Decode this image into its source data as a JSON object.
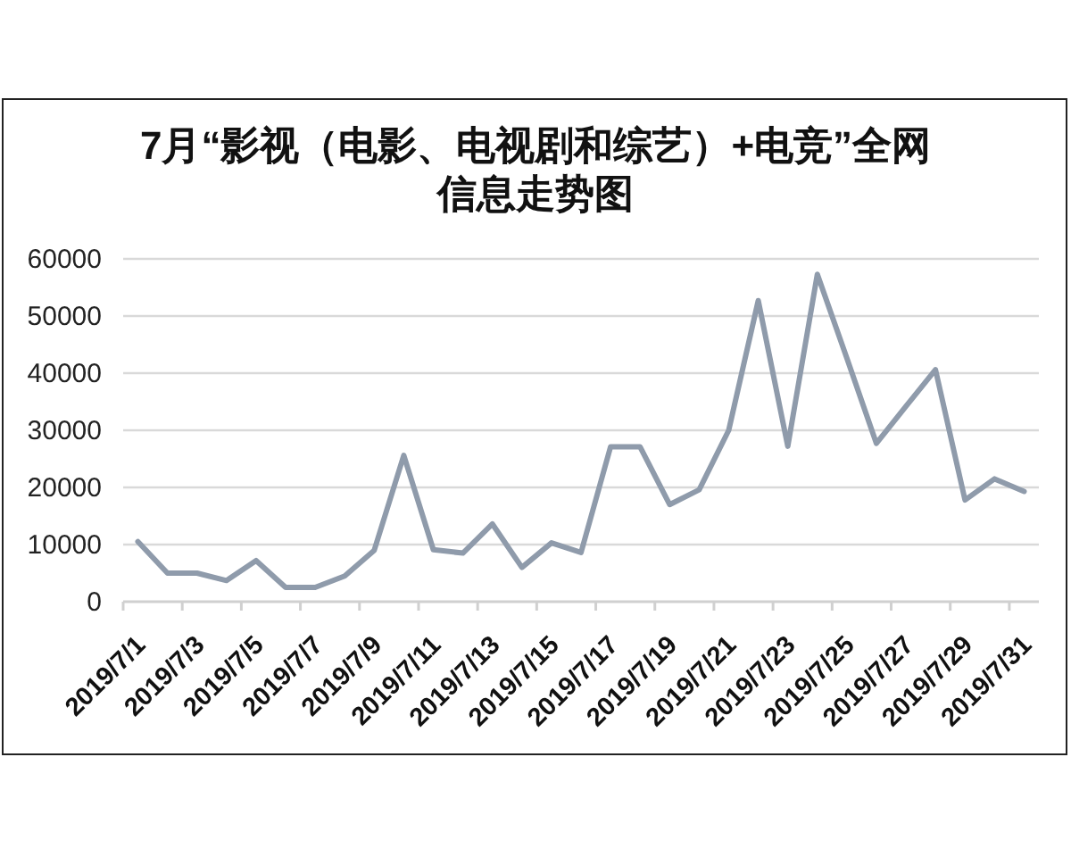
{
  "chart_data": {
    "type": "line",
    "title": "7月“影视（电影、电视剧和综艺）+电竞”全网信息走势图",
    "categories": [
      "2019/7/1",
      null,
      "2019/7/3",
      null,
      "2019/7/5",
      null,
      "2019/7/7",
      null,
      "2019/7/9",
      null,
      "2019/7/11",
      null,
      "2019/7/13",
      null,
      "2019/7/15",
      null,
      "2019/7/17",
      null,
      "2019/7/19",
      null,
      "2019/7/21",
      null,
      "2019/7/23",
      null,
      "2019/7/25",
      null,
      "2019/7/27",
      null,
      "2019/7/29",
      null,
      "2019/7/31"
    ],
    "series": [
      {
        "color": "#8f9bab",
        "values": [
          10500,
          5000,
          5000,
          3700,
          7200,
          2500,
          2500,
          4500,
          9000,
          25600,
          9100,
          8500,
          13600,
          6000,
          10300,
          8600,
          27100,
          27100,
          17000,
          19600,
          30000,
          52700,
          27200,
          57300,
          42600,
          27700,
          34200,
          40600,
          17800,
          21500,
          19300
        ]
      }
    ],
    "ylim": [
      0,
      60000
    ],
    "yticks": [
      0,
      10000,
      20000,
      30000,
      40000,
      50000,
      60000
    ],
    "grid": "y"
  }
}
